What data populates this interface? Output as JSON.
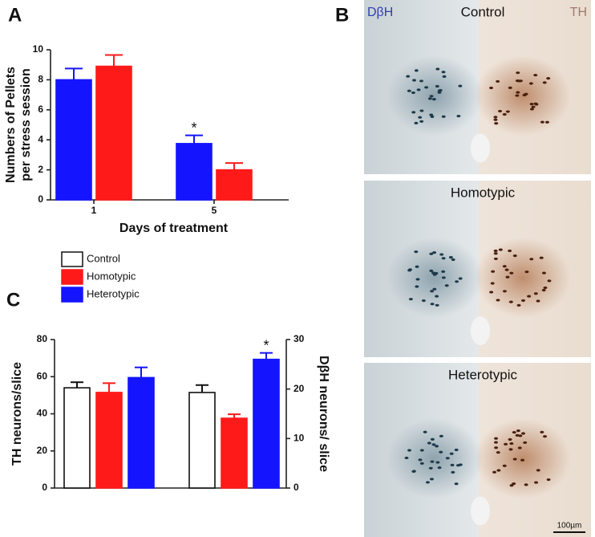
{
  "chart_data": [
    {
      "type": "bar",
      "panel_label": "A",
      "categories": [
        "1",
        "5"
      ],
      "xlabel": "Days of treatment",
      "ylabel": [
        "Numbers of Pellets",
        "per stress session"
      ],
      "ylim": [
        0,
        10
      ],
      "yticks": [
        0,
        2,
        4,
        6,
        8,
        10
      ],
      "series": [
        {
          "color": "#1414ff",
          "values": [
            8.0,
            3.75
          ],
          "errors": [
            0.75,
            0.55
          ],
          "markers": [
            null,
            "*"
          ]
        },
        {
          "color": "#ff1a1a",
          "values": [
            8.9,
            2.0
          ],
          "errors": [
            0.75,
            0.45
          ],
          "markers": [
            null,
            null
          ]
        }
      ]
    },
    {
      "type": "bar",
      "panel_label": "C",
      "categories": [
        null,
        null
      ],
      "category_axes": [
        "y",
        "y2"
      ],
      "ylabel": "TH neurons/slice",
      "y2label": "DβH neurons/ slice",
      "ylim": [
        0,
        80
      ],
      "yticks": [
        0,
        20,
        40,
        60,
        80
      ],
      "y2lim": [
        0,
        30
      ],
      "y2ticks": [
        0,
        10,
        20,
        30
      ],
      "series": [
        {
          "name": "Control",
          "color": "#ffffff",
          "values": [
            54,
            19.3
          ],
          "errors": [
            3,
            1.5
          ],
          "markers": [
            null,
            null
          ]
        },
        {
          "name": "Homotypic",
          "color": "#ff1a1a",
          "values": [
            51.5,
            14.1
          ],
          "errors": [
            5,
            0.8
          ],
          "markers": [
            null,
            null
          ]
        },
        {
          "name": "Heterotypic",
          "color": "#1414ff",
          "values": [
            59.5,
            26
          ],
          "errors": [
            5.5,
            1.3
          ],
          "markers": [
            null,
            "*"
          ]
        }
      ]
    }
  ],
  "panel_b": {
    "label": "B",
    "stain_left": "DβH",
    "stain_right": "TH",
    "panels": [
      "Control",
      "Homotypic",
      "Heterotypic"
    ],
    "scale_bar": "100µm"
  }
}
